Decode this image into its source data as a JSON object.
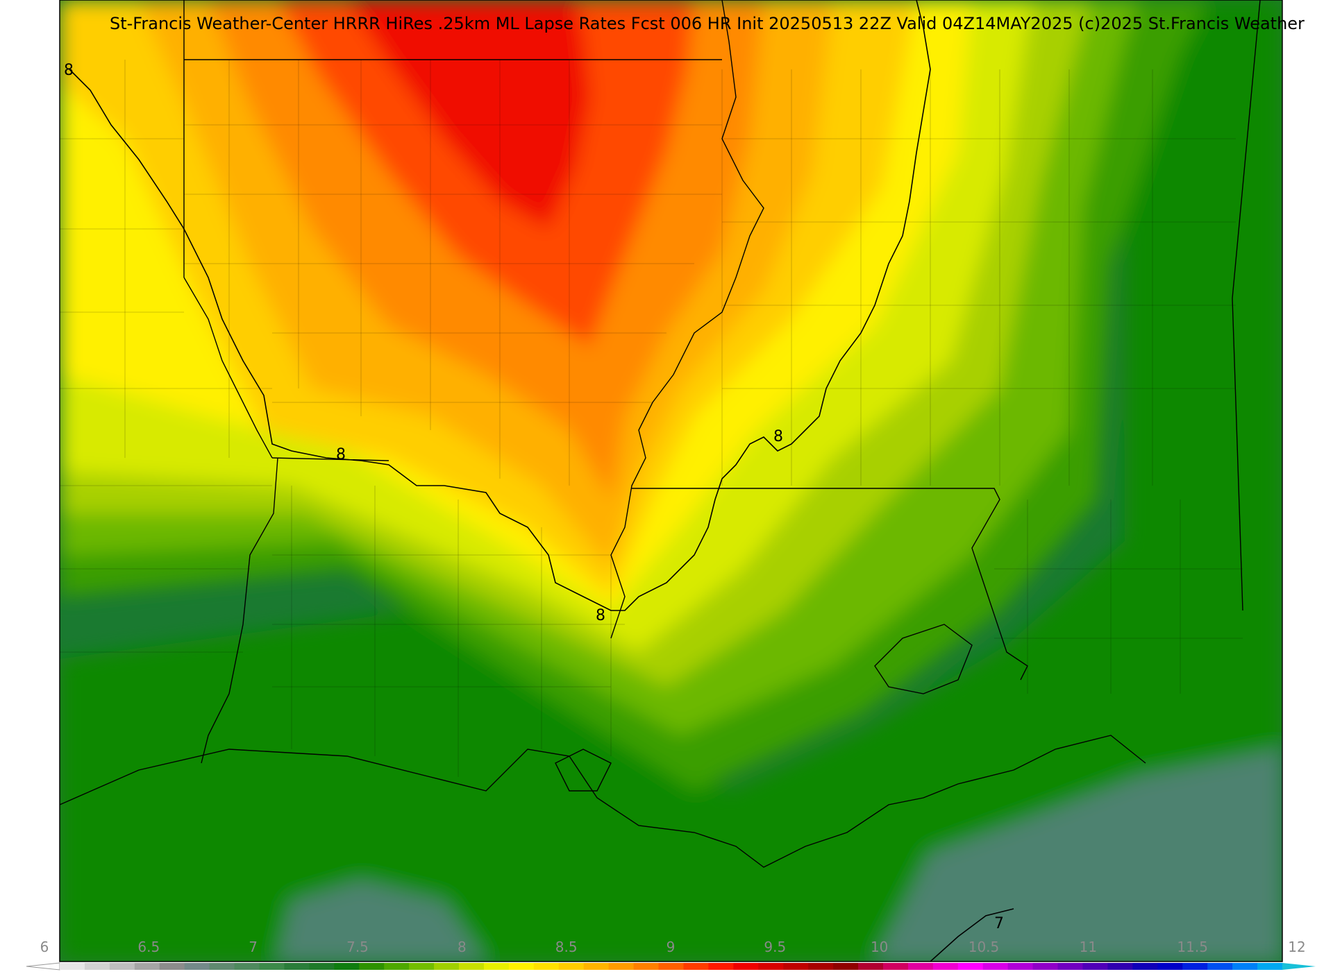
{
  "title": "St-Francis Weather-Center HRRR HiRes .25km ML Lapse Rates  Fcst 006 HR Init 20250513 22Z  Valid 04Z14MAY2025   (c)2025 St.Francis Weather",
  "contour_labels": [
    "8",
    "8",
    "8",
    "8",
    "7"
  ],
  "colorbar": {
    "tick_labels": [
      "6",
      "6.5",
      "7",
      "7.5",
      "8",
      "8.5",
      "9",
      "9.5",
      "10",
      "10.5",
      "11",
      "11.5",
      "12"
    ],
    "colors": [
      "#e6e6e6",
      "#d2d2d2",
      "#bebebe",
      "#a5a5a5",
      "#8c8c8c",
      "#748a8a",
      "#608a70",
      "#4f8a5e",
      "#3c8a4a",
      "#2a7d3a",
      "#1f7a2a",
      "#0f7d10",
      "#2e9200",
      "#4ea800",
      "#73bd00",
      "#a0d000",
      "#c8e000",
      "#e8f000",
      "#fff200",
      "#ffe000",
      "#ffcc00",
      "#ffb400",
      "#ff9c00",
      "#ff8000",
      "#ff6000",
      "#ff3c00",
      "#ff1a00",
      "#f00000",
      "#d80000",
      "#c00000",
      "#a80000",
      "#900000",
      "#b00030",
      "#d00060",
      "#e000a0",
      "#f000d0",
      "#ff00ff",
      "#d800e8",
      "#b000d8",
      "#9000c8",
      "#7000c0",
      "#5000b8",
      "#3000b0",
      "#1000b8",
      "#0000c8",
      "#0020e0",
      "#0050f0",
      "#0080f8",
      "#00a8f0"
    ],
    "min_color": "#ffffff",
    "max_color": "#18c0d8"
  },
  "field_colors": {
    "red": "#f01000",
    "orange_red": "#ff4a00",
    "orange": "#ff8a00",
    "light_orange": "#ffb000",
    "amber": "#ffce00",
    "yellow": "#fff000",
    "yellow_green": "#d8ea00",
    "light_green": "#a8d000",
    "green": "#6cb800",
    "mid_green": "#3a9e00",
    "dark_green": "#108800",
    "forest": "#1a7a30",
    "gray_green": "#4e8270"
  }
}
